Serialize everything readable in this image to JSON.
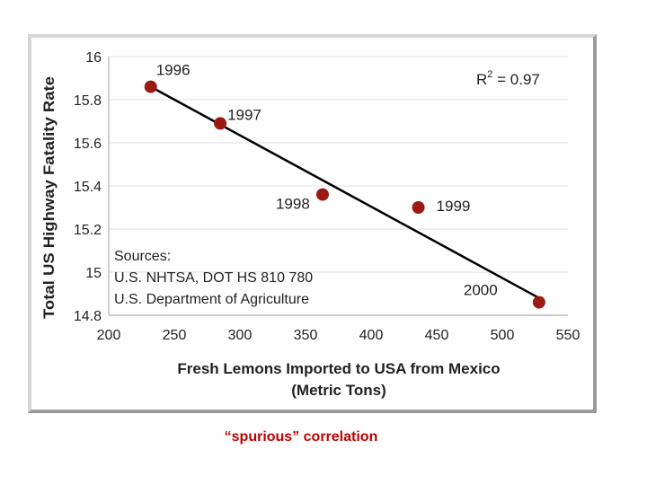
{
  "chart_data": {
    "type": "scatter",
    "title": "",
    "xlabel_lines": [
      "Fresh Lemons Imported to USA from Mexico",
      "(Metric Tons)"
    ],
    "ylabel": "Total US Highway Fatality Rate",
    "xlim": [
      200,
      550
    ],
    "ylim": [
      14.8,
      16
    ],
    "xticks": [
      "200",
      "250",
      "300",
      "350",
      "400",
      "450",
      "500",
      "550"
    ],
    "yticks": [
      "14.8",
      "15",
      "15.2",
      "15.4",
      "15.6",
      "15.8",
      "16"
    ],
    "points": [
      {
        "label": "1996",
        "x": 232,
        "y": 15.86
      },
      {
        "label": "1997",
        "x": 285,
        "y": 15.69
      },
      {
        "label": "1998",
        "x": 363,
        "y": 15.36
      },
      {
        "label": "1999",
        "x": 436,
        "y": 15.3
      },
      {
        "label": "2000",
        "x": 528,
        "y": 14.86
      }
    ],
    "trendline": {
      "x": [
        232,
        528
      ],
      "y": [
        15.86,
        14.88
      ]
    },
    "r2_label": "R",
    "r2_exponent": "2",
    "r2_value": " = 0.97",
    "sources": [
      "Sources:",
      "U.S. NHTSA, DOT HS 810 780",
      "U.S. Department of Agriculture"
    ],
    "grid": true,
    "colors": {
      "point": "#9b1a14",
      "line": "#000000",
      "grid": "#e8e8e8",
      "axis": "#bdbdbd"
    }
  },
  "caption": "“spurious” correlation"
}
